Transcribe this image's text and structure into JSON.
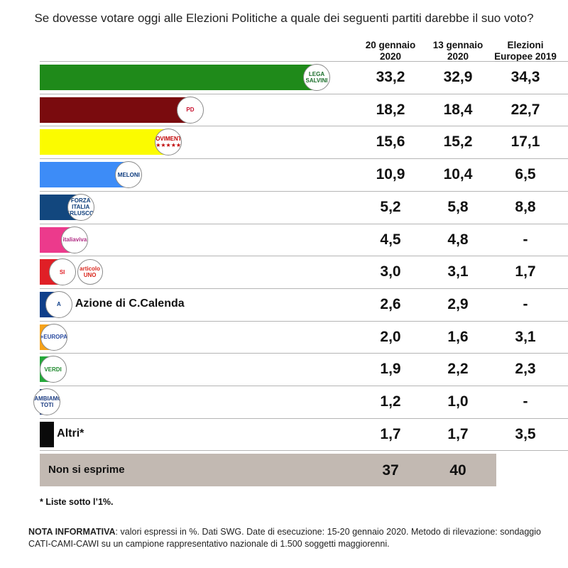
{
  "title": "Se dovesse votare oggi alle Elezioni Politiche a quale dei seguenti partiti darebbe il suo voto?",
  "columns": [
    "20 gennaio\n2020",
    "13 gennaio\n2020",
    "Elezioni\nEuropee 2019"
  ],
  "chart_data": {
    "type": "bar",
    "title": "Se dovesse votare oggi alle Elezioni Politiche a quale dei seguenti partiti darebbe il suo voto?",
    "series": [
      {
        "name": "20 gennaio 2020",
        "values": [
          33.2,
          18.2,
          15.6,
          10.9,
          5.2,
          4.5,
          3.0,
          2.6,
          2.0,
          1.9,
          1.2,
          1.7
        ]
      },
      {
        "name": "13 gennaio 2020",
        "values": [
          32.9,
          18.4,
          15.2,
          10.4,
          5.8,
          4.8,
          3.1,
          2.9,
          1.6,
          2.2,
          1.0,
          1.7
        ]
      },
      {
        "name": "Elezioni Europee 2019",
        "values": [
          34.3,
          22.7,
          17.1,
          6.5,
          8.8,
          null,
          1.7,
          null,
          3.1,
          2.3,
          null,
          3.5
        ]
      }
    ],
    "rows": [
      {
        "color": "#1f8a1a",
        "logo": "lega-salvini-logo",
        "logo_text": "LEGA\nSALVINI",
        "logo_color": "#1a6e2a",
        "label": "",
        "display": [
          "33,2",
          "32,9",
          "34,3"
        ],
        "value": 33.2
      },
      {
        "color": "#7a0b0e",
        "logo": "pd-logo",
        "logo_text": "PD",
        "logo_color": "#c8102e",
        "label": "",
        "display": [
          "18,2",
          "18,4",
          "22,7"
        ],
        "value": 18.2
      },
      {
        "color": "#fbfb00",
        "logo": "movimento-5-stelle-logo",
        "logo_text": "MOVIMENTO\n★★★★★",
        "logo_color": "#c00000",
        "label": "",
        "display": [
          "15,6",
          "15,2",
          "17,1"
        ],
        "value": 15.6
      },
      {
        "color": "#3d8cf7",
        "logo": "fratelli-italia-meloni-logo",
        "logo_text": "MELONI",
        "logo_color": "#0b3a7e",
        "label": "",
        "display": [
          "10,9",
          "10,4",
          "6,5"
        ],
        "value": 10.9
      },
      {
        "color": "#12477e",
        "logo": "forza-italia-berlusconi-logo",
        "logo_text": "FORZA ITALIA\nBERLUSCONI",
        "logo_color": "#0d3d7a",
        "label": "",
        "display": [
          "5,2",
          "5,8",
          "8,8"
        ],
        "value": 5.2
      },
      {
        "color": "#ec3a8c",
        "logo": "italia-viva-logo",
        "logo_text": "italiaviva",
        "logo_color": "#b02a83",
        "label": "",
        "display": [
          "4,5",
          "4,8",
          "-"
        ],
        "value": 4.5
      },
      {
        "color": "#e01f26",
        "logo": "sinistra-italiana-logo",
        "logo_text": "SI",
        "logo_color": "#e01f26",
        "logo2": "articolo-uno-logo",
        "logo2_text": "articolo\nUNO",
        "logo2_color": "#d9261c",
        "label": "",
        "display": [
          "3,0",
          "3,1",
          "1,7"
        ],
        "value": 3.0
      },
      {
        "color": "#0f3f8a",
        "logo": "azione-logo",
        "logo_text": "A",
        "logo_color": "#0f3f8a",
        "label": "Azione di C.Calenda",
        "display": [
          "2,6",
          "2,9",
          "-"
        ],
        "value": 2.6
      },
      {
        "color": "#f6a21a",
        "logo": "piu-europa-logo",
        "logo_text": "+EUROPA",
        "logo_color": "#2a4ba0",
        "label": "",
        "display": [
          "2,0",
          "1,6",
          "3,1"
        ],
        "value": 2.0
      },
      {
        "color": "#25a83a",
        "logo": "verdi-logo",
        "logo_text": "VERDI",
        "logo_color": "#1f8a2e",
        "label": "",
        "display": [
          "1,9",
          "2,2",
          "2,3"
        ],
        "value": 1.9
      },
      {
        "color": "#1d3d82",
        "logo": "cambiamo-toti-logo",
        "logo_text": "CAMBIAMO!\nTOTI",
        "logo_color": "#1d3d82",
        "label": "",
        "display": [
          "1,2",
          "1,0",
          "-"
        ],
        "value": 1.2
      },
      {
        "color": "#0a0a0a",
        "logo": "",
        "logo_text": "",
        "logo_color": "",
        "label": "Altri*",
        "display": [
          "1,7",
          "1,7",
          "3,5"
        ],
        "value": 1.7
      }
    ]
  },
  "non_si_esprime": {
    "label": "Non si esprime",
    "values": [
      "37",
      "40"
    ]
  },
  "footnote": "* Liste sotto l’1%.",
  "nota": {
    "bold": "NOTA INFORMATIVA",
    "text": ": valori espressi in %. Dati SWG. Date di esecuzione: 15-20 gennaio 2020. Metodo di rilevazione: sondaggio CATI-CAMI-CAWI su un campione rappresentativo nazionale di 1.500 soggetti maggiorenni."
  }
}
